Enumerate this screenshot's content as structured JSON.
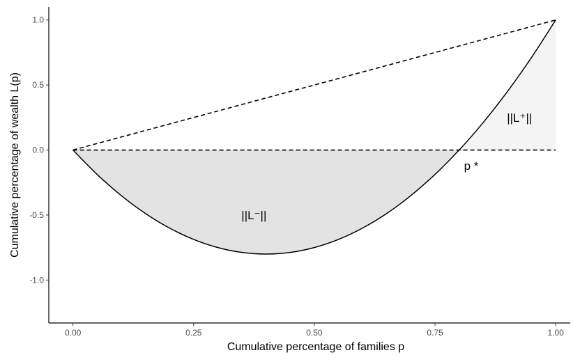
{
  "chart_data": {
    "type": "line",
    "xlabel": "Cumulative percentage of families p",
    "ylabel": "Cumulative percentage of wealth L(p)",
    "xlim": [
      -0.05,
      1.03
    ],
    "ylim": [
      -1.33,
      1.1
    ],
    "x_ticks": [
      0,
      0.25,
      0.5,
      0.75,
      1
    ],
    "x_tick_labels": [
      "0.00",
      "0.25",
      "0.50",
      "0.75",
      "1.00"
    ],
    "y_ticks": [
      1,
      0.5,
      0,
      -0.5,
      -1
    ],
    "y_tick_labels": [
      "1.0",
      "0.5",
      "0.0",
      "-0.5",
      "-1.0"
    ],
    "grid": false,
    "series": [
      {
        "style": "solid",
        "x": [
          0,
          0.05,
          0.1,
          0.15,
          0.2,
          0.25,
          0.3,
          0.35,
          0.4,
          0.45,
          0.5,
          0.55,
          0.6,
          0.65,
          0.7,
          0.75,
          0.8,
          0.85,
          0.9,
          0.95,
          1
        ],
        "y": [
          0,
          -0.1875,
          -0.35,
          -0.4875,
          -0.6,
          -0.6875,
          -0.75,
          -0.7875,
          -0.8,
          -0.7875,
          -0.75,
          -0.6875,
          -0.6,
          -0.4875,
          -0.35,
          -0.1875,
          0,
          0.2125,
          0.45,
          0.7125,
          1
        ]
      },
      {
        "style": "dashed",
        "x": [
          0,
          1
        ],
        "y": [
          0,
          1
        ]
      },
      {
        "style": "dashed",
        "x": [
          0,
          1
        ],
        "y": [
          0,
          0
        ]
      }
    ],
    "shaded_regions": [
      {
        "label": "||L⁻||",
        "x_from": 0,
        "x_to": 0.8,
        "color": "#e3e3e3"
      },
      {
        "label": "||L⁺||",
        "x_from": 0.8,
        "x_to": 1,
        "color": "#f4f4f4"
      }
    ],
    "annotations": [
      {
        "text": "||L⁻||",
        "x": 0.375,
        "y": -0.5
      },
      {
        "text": "||L⁺||",
        "x": 0.925,
        "y": 0.25
      },
      {
        "text": "p *",
        "x": 0.825,
        "y": -0.12
      }
    ]
  }
}
